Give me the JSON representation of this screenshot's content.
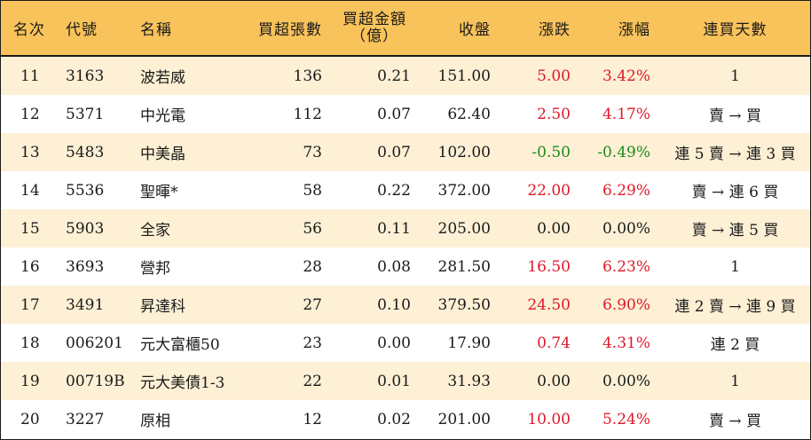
{
  "headers": {
    "rank": "名次",
    "code": "代號",
    "name": "名稱",
    "net_buy_lots": "買超張數",
    "net_buy_amount_line1": "買超金額",
    "net_buy_amount_line2": "（億）",
    "close": "收盤",
    "change": "漲跌",
    "change_pct": "漲幅",
    "consecutive_days": "連買天數"
  },
  "colors": {
    "header_bg": "#f9c35b",
    "alt_row_bg": "#fdf0d5",
    "up": "#e0192a",
    "down": "#1e8a1e"
  },
  "rows": [
    {
      "rank": "11",
      "code": "3163",
      "name": "波若威",
      "lots": "136",
      "amount": "0.21",
      "close": "151.00",
      "change": "5.00",
      "pct": "3.42%",
      "trend": "up",
      "days": "1"
    },
    {
      "rank": "12",
      "code": "5371",
      "name": "中光電",
      "lots": "112",
      "amount": "0.07",
      "close": "62.40",
      "change": "2.50",
      "pct": "4.17%",
      "trend": "up",
      "days": "賣 → 買"
    },
    {
      "rank": "13",
      "code": "5483",
      "name": "中美晶",
      "lots": "73",
      "amount": "0.07",
      "close": "102.00",
      "change": "-0.50",
      "pct": "-0.49%",
      "trend": "down",
      "days": "連 5 賣 → 連 3 買"
    },
    {
      "rank": "14",
      "code": "5536",
      "name": "聖暉*",
      "lots": "58",
      "amount": "0.22",
      "close": "372.00",
      "change": "22.00",
      "pct": "6.29%",
      "trend": "up",
      "days": "賣 → 連 6 買"
    },
    {
      "rank": "15",
      "code": "5903",
      "name": "全家",
      "lots": "56",
      "amount": "0.11",
      "close": "205.00",
      "change": "0.00",
      "pct": "0.00%",
      "trend": "flat",
      "days": "賣 → 連 5 買"
    },
    {
      "rank": "16",
      "code": "3693",
      "name": "營邦",
      "lots": "28",
      "amount": "0.08",
      "close": "281.50",
      "change": "16.50",
      "pct": "6.23%",
      "trend": "up",
      "days": "1"
    },
    {
      "rank": "17",
      "code": "3491",
      "name": "昇達科",
      "lots": "27",
      "amount": "0.10",
      "close": "379.50",
      "change": "24.50",
      "pct": "6.90%",
      "trend": "up",
      "days": "連 2 賣 → 連 9 買"
    },
    {
      "rank": "18",
      "code": "006201",
      "name": "元大富櫃50",
      "lots": "23",
      "amount": "0.00",
      "close": "17.90",
      "change": "0.74",
      "pct": "4.31%",
      "trend": "up",
      "days": "連 2 買"
    },
    {
      "rank": "19",
      "code": "00719B",
      "name": "元大美債1-3",
      "lots": "22",
      "amount": "0.01",
      "close": "31.93",
      "change": "0.00",
      "pct": "0.00%",
      "trend": "flat",
      "days": "1"
    },
    {
      "rank": "20",
      "code": "3227",
      "name": "原相",
      "lots": "12",
      "amount": "0.02",
      "close": "201.00",
      "change": "10.00",
      "pct": "5.24%",
      "trend": "up",
      "days": "賣 → 買"
    }
  ]
}
